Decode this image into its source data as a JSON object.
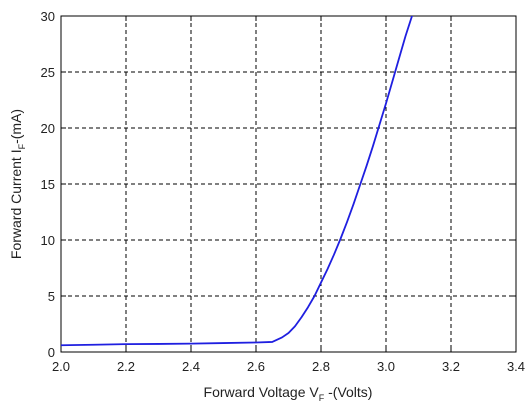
{
  "chart_data": {
    "type": "line",
    "xlabel": {
      "prefix": "Forward Voltage V",
      "sub": "F",
      "suffix": " -(Volts)"
    },
    "ylabel": {
      "prefix": "Forward Current I",
      "sub": "F",
      "suffix": "-(mA)"
    },
    "xlim": [
      2.0,
      3.4
    ],
    "ylim": [
      0,
      30
    ],
    "xticks": [
      "2.0",
      "2.2",
      "2.4",
      "2.6",
      "2.8",
      "3.0",
      "3.2",
      "3.4"
    ],
    "yticks": [
      "0",
      "5",
      "10",
      "15",
      "20",
      "25",
      "30"
    ],
    "grid": true,
    "grid_style": "dashed",
    "line_color": "#1f1fe0",
    "series": [
      {
        "x": [
          2.0,
          2.1,
          2.2,
          2.3,
          2.4,
          2.5,
          2.6,
          2.65,
          2.68,
          2.7,
          2.72,
          2.74,
          2.76,
          2.78,
          2.8,
          2.82,
          2.84,
          2.86,
          2.88,
          2.9,
          2.92,
          2.94,
          2.96,
          2.98,
          3.0,
          3.02,
          3.04,
          3.06,
          3.08,
          3.09
        ],
        "y": [
          0.6,
          0.65,
          0.7,
          0.72,
          0.75,
          0.8,
          0.85,
          0.9,
          1.3,
          1.7,
          2.3,
          3.1,
          4.0,
          5.0,
          6.2,
          7.4,
          8.7,
          10.1,
          11.6,
          13.2,
          14.9,
          16.6,
          18.4,
          20.3,
          22.2,
          24.2,
          26.2,
          28.2,
          30.0,
          30.5
        ]
      }
    ]
  }
}
